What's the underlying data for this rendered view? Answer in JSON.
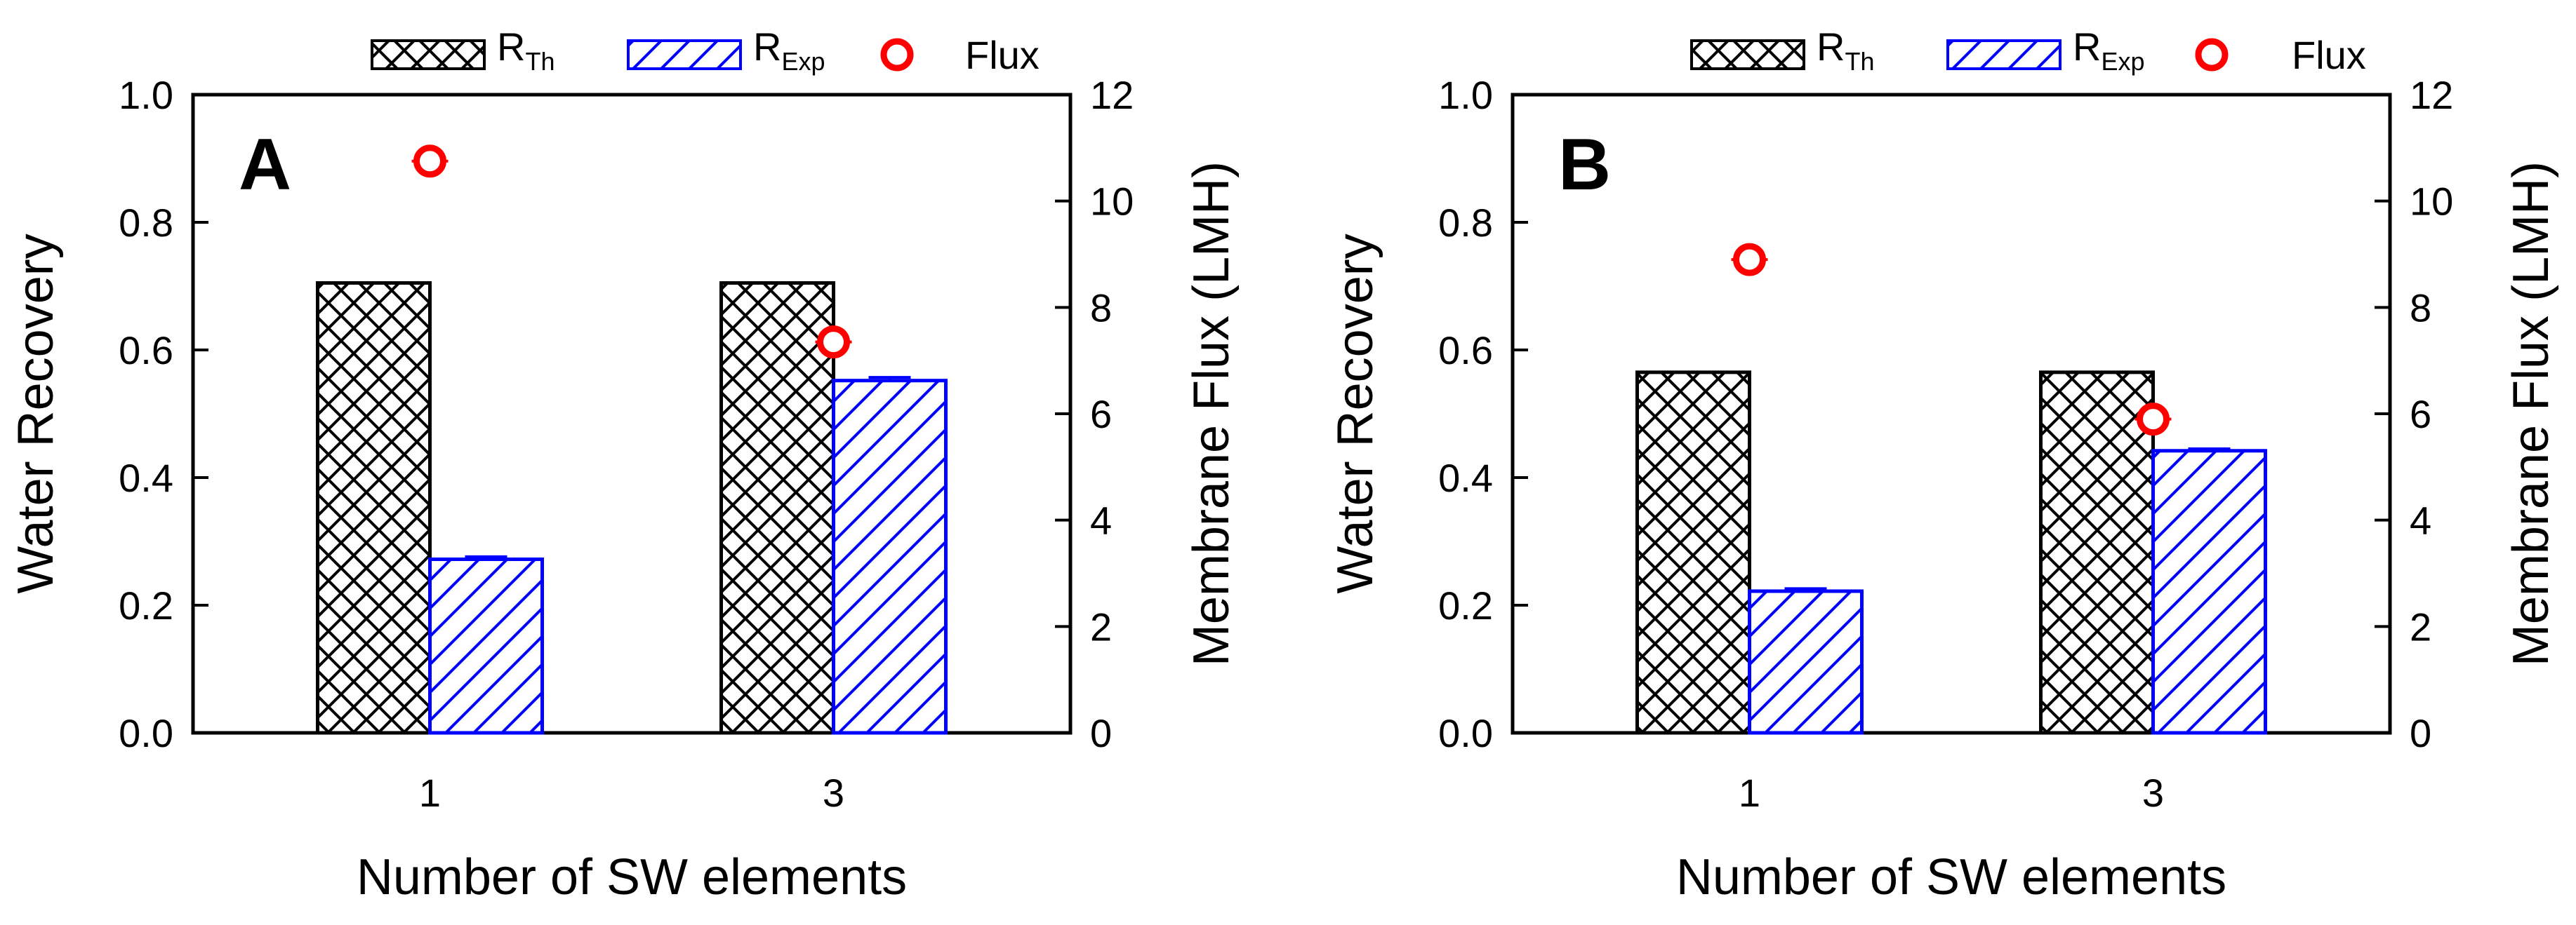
{
  "chart_data": [
    {
      "panel": "A",
      "type": "bar",
      "categories": [
        "1",
        "3"
      ],
      "xlabel": "Number of SW elements",
      "ylabel": "Water Recovery",
      "y2label": "Membrane Flux (LMH)",
      "ylim": [
        0,
        1.0
      ],
      "y2lim": [
        0,
        12
      ],
      "yticks": [
        "0.0",
        "0.2",
        "0.4",
        "0.6",
        "0.8",
        "1.0"
      ],
      "y2ticks": [
        "0",
        "2",
        "4",
        "6",
        "8",
        "10",
        "12"
      ],
      "legend_position": "top-center",
      "legend": {
        "rth": {
          "main": "R",
          "sub": "Th"
        },
        "rexp": {
          "main": "R",
          "sub": "Exp"
        },
        "flux": "Flux"
      },
      "series": [
        {
          "name": "R_Th",
          "axis": "left",
          "style": "crosshatch",
          "values": [
            0.705,
            0.705
          ]
        },
        {
          "name": "R_Exp",
          "axis": "left",
          "style": "diagonal",
          "values": [
            0.272,
            0.552
          ],
          "errors": [
            0.004,
            0.005
          ]
        },
        {
          "name": "Flux",
          "axis": "right",
          "style": "circle",
          "values": [
            10.75,
            7.35
          ],
          "errors": [
            0.15,
            0.15
          ]
        }
      ]
    },
    {
      "panel": "B",
      "type": "bar",
      "categories": [
        "1",
        "3"
      ],
      "xlabel": "Number of SW elements",
      "ylabel": "Water Recovery",
      "y2label": "Membrane Flux (LMH)",
      "ylim": [
        0,
        1.0
      ],
      "y2lim": [
        0,
        12
      ],
      "yticks": [
        "0.0",
        "0.2",
        "0.4",
        "0.6",
        "0.8",
        "1.0"
      ],
      "y2ticks": [
        "0",
        "2",
        "4",
        "6",
        "8",
        "10",
        "12"
      ],
      "legend_position": "top-center",
      "legend": {
        "rth": {
          "main": "R",
          "sub": "Th"
        },
        "rexp": {
          "main": "R",
          "sub": "Exp"
        },
        "flux": "Flux"
      },
      "series": [
        {
          "name": "R_Th",
          "axis": "left",
          "style": "crosshatch",
          "values": [
            0.565,
            0.565
          ]
        },
        {
          "name": "R_Exp",
          "axis": "left",
          "style": "diagonal",
          "values": [
            0.222,
            0.442
          ],
          "errors": [
            0.004,
            0.003
          ]
        },
        {
          "name": "Flux",
          "axis": "right",
          "style": "circle",
          "values": [
            8.9,
            5.9
          ],
          "errors": [
            0.15,
            0.15
          ]
        }
      ]
    }
  ],
  "colors": {
    "axis": "#000000",
    "rth_edge": "#000000",
    "rexp_edge": "#0000ff",
    "flux": "#ff0000"
  }
}
